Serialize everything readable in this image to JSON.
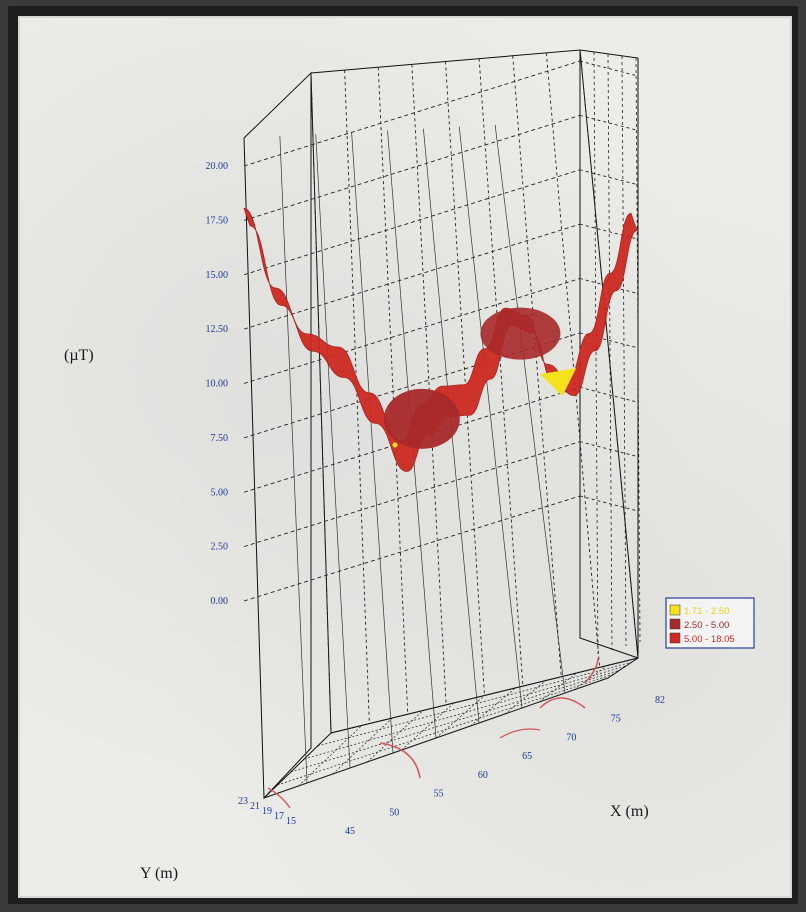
{
  "chart_data": {
    "type": "surface",
    "ylabel": "(µT)",
    "xlabel": "X (m)",
    "zlabel": "Y (m)",
    "y_ticks": [
      "0.00",
      "2.50",
      "5.00",
      "7.50",
      "10.00",
      "12.50",
      "15.00",
      "17.50",
      "20.00"
    ],
    "ylim": [
      0,
      20
    ],
    "x_ticks": [
      "45",
      "50",
      "55",
      "60",
      "65",
      "70",
      "75",
      "82"
    ],
    "xlim": [
      45,
      82
    ],
    "depth_ticks": [
      "23",
      "21",
      "19",
      "17",
      "15"
    ],
    "grid": true,
    "legend": [
      {
        "label": "1.71 -  2.50",
        "color": "#f5e21a"
      },
      {
        "label": "2.50 -  5.00",
        "color": "#a8292a"
      },
      {
        "label": "5.00 - 18.05",
        "color": "#cc2a22"
      }
    ],
    "legend_position": "right",
    "profile": {
      "x": [
        45,
        48,
        51,
        54,
        57,
        60,
        62,
        64,
        66,
        68,
        70,
        72,
        74,
        76,
        78,
        80,
        82
      ],
      "y": [
        18.05,
        14.0,
        11.5,
        10.5,
        8.0,
        5.4,
        6.8,
        7.4,
        7.2,
        8.6,
        10.2,
        9.6,
        7.1,
        6.2,
        8.0,
        10.5,
        13.0
      ]
    },
    "minimum_region_value": 1.71
  }
}
